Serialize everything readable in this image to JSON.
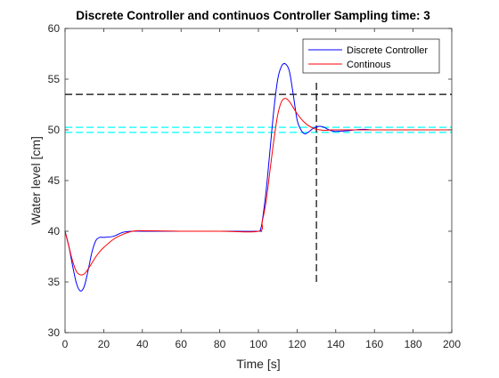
{
  "chart_data": {
    "type": "line",
    "title": "Discrete Controller and continuos Controller Sampling time: 3",
    "xlabel": "Time [s]",
    "ylabel": "Water level [cm]",
    "xlim": [
      0,
      200
    ],
    "ylim": [
      30,
      60
    ],
    "xticks": [
      0,
      20,
      40,
      60,
      80,
      100,
      120,
      140,
      160,
      180,
      200
    ],
    "yticks": [
      30,
      35,
      40,
      45,
      50,
      55,
      60
    ],
    "grid": false,
    "legend_position": "top-right",
    "series": [
      {
        "name": "Discrete Controller",
        "color": "#0000ff",
        "x": [
          0,
          2,
          4,
          6,
          8,
          10,
          12,
          14,
          16,
          18,
          20,
          25,
          30,
          35,
          40,
          60,
          80,
          100,
          101,
          102,
          104,
          106,
          108,
          110,
          112,
          114,
          116,
          118,
          120,
          122,
          124,
          126,
          128,
          130,
          132,
          134,
          136,
          138,
          140,
          145,
          150,
          155,
          160,
          180,
          200
        ],
        "y": [
          40,
          38.5,
          36.5,
          34.8,
          34.1,
          34.6,
          36.2,
          38,
          39.1,
          39.4,
          39.4,
          39.5,
          39.9,
          40,
          40,
          40,
          40,
          40,
          40.1,
          41,
          44,
          48,
          52,
          55,
          56.3,
          56.5,
          55.8,
          53.5,
          51,
          50,
          49.6,
          49.8,
          50.1,
          50.3,
          50.35,
          50.25,
          50.05,
          49.9,
          49.85,
          49.9,
          50,
          50.05,
          50,
          50,
          50
        ]
      },
      {
        "name": "Continous",
        "color": "#ff0000",
        "x": [
          0,
          2,
          4,
          6,
          8,
          10,
          12,
          14,
          16,
          18,
          20,
          25,
          30,
          35,
          40,
          60,
          80,
          100,
          102,
          104,
          106,
          108,
          110,
          112,
          114,
          116,
          118,
          120,
          122,
          124,
          126,
          128,
          130,
          132,
          134,
          136,
          138,
          140,
          150,
          160,
          180,
          200
        ],
        "y": [
          40,
          38.5,
          37,
          36,
          35.7,
          35.8,
          36.3,
          36.9,
          37.5,
          38,
          38.4,
          39.2,
          39.7,
          40,
          40.05,
          40,
          40,
          40,
          41,
          43,
          46,
          49,
          51.5,
          52.8,
          53.1,
          52.8,
          52.2,
          51.6,
          51.1,
          50.7,
          50.4,
          50.2,
          50.05,
          50,
          49.95,
          49.97,
          50,
          50,
          50,
          50,
          50,
          50
        ]
      }
    ],
    "reference_lines": [
      {
        "orientation": "horizontal",
        "value": 53.5,
        "color": "#000000",
        "style": "dashed"
      },
      {
        "orientation": "horizontal",
        "value": 50.25,
        "color": "#00ffff",
        "style": "dashed"
      },
      {
        "orientation": "horizontal",
        "value": 49.75,
        "color": "#00ffff",
        "style": "dashed"
      },
      {
        "orientation": "vertical",
        "value": 130,
        "from": 35,
        "to": 55,
        "color": "#000000",
        "style": "dashed"
      }
    ]
  }
}
